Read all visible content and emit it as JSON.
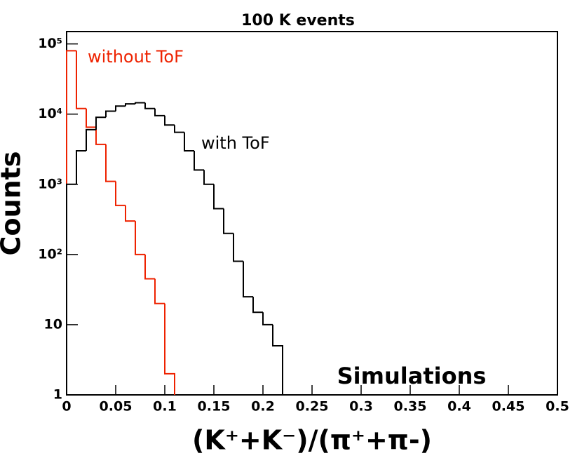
{
  "chart_data": {
    "type": "histogram",
    "title": "100 K events",
    "xlabel": "(K⁺+K⁻)/(π⁺+π-)",
    "ylabel": "Counts",
    "xlim": [
      0,
      0.5
    ],
    "xticks": [
      0,
      0.05,
      0.1,
      0.15,
      0.2,
      0.25,
      0.3,
      0.35,
      0.4,
      0.45,
      0.5
    ],
    "ylim": [
      1,
      150000
    ],
    "log_y": true,
    "yticks": [
      1,
      10,
      {
        "value": 100,
        "label": "10²"
      },
      {
        "value": 1000,
        "label": "10³"
      },
      {
        "value": 10000,
        "label": "10⁴"
      },
      {
        "value": 100000,
        "label": "10⁵"
      }
    ],
    "series": [
      {
        "name": "without ToF",
        "color": "#ee2200",
        "bins": [
          0,
          0.01,
          0.02,
          0.03,
          0.04,
          0.05,
          0.06,
          0.07,
          0.08,
          0.09,
          0.1,
          0.11
        ],
        "values": [
          80000,
          12000,
          6500,
          3700,
          1100,
          500,
          300,
          100,
          45,
          20,
          2
        ]
      },
      {
        "name": "with ToF",
        "color": "#000000",
        "bins": [
          0,
          0.01,
          0.02,
          0.03,
          0.04,
          0.05,
          0.06,
          0.07,
          0.08,
          0.09,
          0.1,
          0.11,
          0.12,
          0.13,
          0.14,
          0.15,
          0.16,
          0.17,
          0.18,
          0.19,
          0.2,
          0.21,
          0.22
        ],
        "values": [
          1000,
          3000,
          6000,
          9000,
          11000,
          13000,
          14000,
          14500,
          12000,
          9500,
          7000,
          5500,
          3000,
          1600,
          1000,
          450,
          200,
          80,
          25,
          15,
          10,
          5
        ]
      }
    ],
    "annotations": [
      "Simulations"
    ]
  }
}
